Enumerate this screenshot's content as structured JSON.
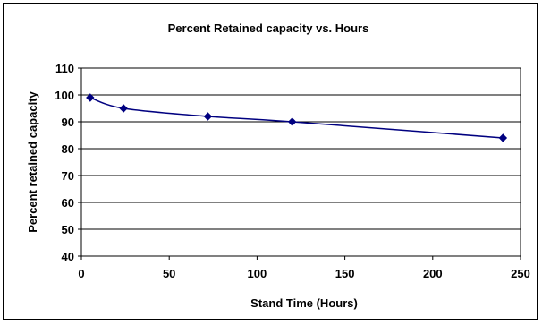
{
  "chart_data": {
    "type": "line",
    "title": "Percent Retained capacity vs. Hours",
    "xlabel": "Stand Time (Hours)",
    "ylabel": "Percent retained capacity",
    "xlim": [
      0,
      250
    ],
    "ylim": [
      40,
      110
    ],
    "x_ticks": [
      0,
      50,
      100,
      150,
      200,
      250
    ],
    "y_ticks": [
      40,
      50,
      60,
      70,
      80,
      90,
      100,
      110
    ],
    "grid": "horizontal",
    "legend": "none",
    "series": [
      {
        "color": "#000080",
        "x": [
          5,
          24,
          72,
          120,
          240
        ],
        "y": [
          99,
          95,
          92,
          90,
          84
        ]
      }
    ]
  }
}
